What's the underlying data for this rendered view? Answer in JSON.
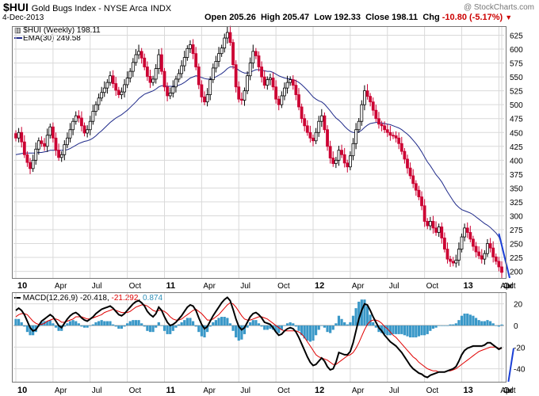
{
  "header": {
    "symbol": "$HUI",
    "name": "Gold Bugs Index - NYSE Arca",
    "exchange": "INDX",
    "date": "4-Dec-2013",
    "watermark": "@ StockCharts.com",
    "open_label": "Open",
    "open": "205.26",
    "high_label": "High",
    "high": "205.47",
    "low_label": "Low",
    "low": "192.33",
    "close_label": "Close",
    "close": "198.11",
    "chg_label": "Chg",
    "chg": "-10.80 (-5.17%)",
    "chg_icon": "down-triangle-icon"
  },
  "legend": {
    "price": "$HUI (Weekly) 198.11",
    "ema": "EMA(30) 249.58",
    "macd_label": "MACD(12,26,9)",
    "macd": "-20.418",
    "signal": "-21.292",
    "hist": "0.874"
  },
  "colors": {
    "up": "#000000",
    "down": "#cc0033",
    "ema": "#1f2a8a",
    "trendline": "#1a3fd6",
    "macd": "#000000",
    "signal": "#e00000",
    "histogram": "#3a98c8",
    "grid": "#d9d9d9"
  },
  "chart_data": [
    {
      "type": "candlestick",
      "title": "$HUI (Weekly)",
      "x_ticks": [
        "10",
        "Apr",
        "Jul",
        "Oct",
        "11",
        "Apr",
        "Jul",
        "Oct",
        "12",
        "Apr",
        "Jul",
        "Oct",
        "13",
        "Apr",
        "Jul",
        "Oct"
      ],
      "y_ticks": [
        200,
        225,
        250,
        275,
        300,
        325,
        350,
        375,
        400,
        425,
        450,
        475,
        500,
        525,
        550,
        575,
        600,
        625
      ],
      "ylim": [
        188,
        640
      ],
      "grid": true,
      "series": [
        {
          "name": "$HUI (Weekly)",
          "type": "candlestick",
          "close": [
            440,
            450,
            433,
            410,
            396,
            385,
            400,
            420,
            435,
            430,
            425,
            445,
            460,
            440,
            418,
            405,
            410,
            428,
            440,
            455,
            470,
            480,
            476,
            462,
            449,
            455,
            470,
            488,
            500,
            512,
            522,
            530,
            540,
            552,
            538,
            526,
            518,
            523,
            536,
            548,
            560,
            576,
            590,
            596,
            584,
            568,
            551,
            540,
            546,
            565,
            590,
            560,
            532,
            516,
            521,
            532,
            546,
            556,
            570,
            585,
            601,
            608,
            592,
            568,
            536,
            514,
            505,
            518,
            545,
            566,
            578,
            592,
            602,
            620,
            630,
            612,
            572,
            532,
            510,
            508,
            525,
            552,
            575,
            596,
            588,
            568,
            550,
            535,
            545,
            548,
            532,
            510,
            500,
            516,
            530,
            540,
            545,
            535,
            518,
            496,
            475,
            462,
            450,
            440,
            435,
            450,
            470,
            480,
            455,
            425,
            404,
            394,
            400,
            418,
            410,
            395,
            388,
            408,
            430,
            455,
            470,
            500,
            525,
            515,
            505,
            490,
            475,
            465,
            462,
            455,
            450,
            445,
            444,
            440,
            430,
            416,
            402,
            386,
            372,
            358,
            346,
            334,
            318,
            290,
            282,
            290,
            278,
            270,
            280,
            260,
            240,
            222,
            218,
            215,
            220,
            240,
            262,
            278,
            270,
            258,
            245,
            235,
            228,
            222,
            232,
            250,
            242,
            226,
            218,
            208,
            198.11
          ]
        },
        {
          "name": "EMA(30)",
          "type": "line",
          "values": [
            410,
            411,
            412,
            413,
            413,
            413,
            413,
            413,
            414,
            414,
            415,
            416,
            418,
            418,
            418,
            418,
            418,
            418,
            419,
            421,
            424,
            427,
            430,
            432,
            434,
            435,
            437,
            440,
            444,
            449,
            453,
            458,
            463,
            468,
            472,
            476,
            479,
            482,
            486,
            490,
            495,
            500,
            505,
            511,
            515,
            519,
            521,
            523,
            525,
            528,
            532,
            534,
            534,
            533,
            533,
            533,
            534,
            535,
            537,
            540,
            544,
            548,
            550,
            552,
            551,
            549,
            547,
            546,
            546,
            548,
            550,
            553,
            556,
            560,
            565,
            568,
            568,
            566,
            562,
            559,
            557,
            557,
            558,
            561,
            563,
            563,
            562,
            561,
            560,
            560,
            558,
            555,
            552,
            550,
            548,
            547,
            546,
            545,
            543,
            540,
            536,
            531,
            526,
            520,
            514,
            510,
            507,
            505,
            501,
            495,
            489,
            482,
            476,
            472,
            467,
            461,
            456,
            452,
            450,
            450,
            451,
            454,
            459,
            463,
            466,
            467,
            468,
            468,
            467,
            466,
            465,
            464,
            462,
            460,
            458,
            455,
            451,
            447,
            442,
            436,
            430,
            423,
            415,
            406,
            397,
            390,
            382,
            374,
            368,
            361,
            352,
            343,
            335,
            327,
            320,
            315,
            311,
            309,
            307,
            305,
            302,
            298,
            294,
            290,
            286,
            283,
            279,
            274,
            269,
            262,
            249.58
          ]
        },
        {
          "name": "Trend line",
          "type": "line",
          "points": [
            [
              "Apr 2013",
              268
            ],
            [
              "Dec 2013",
              188
            ]
          ]
        }
      ]
    },
    {
      "type": "line",
      "title": "MACD(12,26,9)",
      "x_ticks": [
        "10",
        "Apr",
        "Jul",
        "Oct",
        "11",
        "Apr",
        "Jul",
        "Oct",
        "12",
        "Apr",
        "Jul",
        "Oct",
        "13",
        "Apr",
        "Jul",
        "Oct"
      ],
      "y_ticks": [
        -40,
        -20,
        0,
        20
      ],
      "ylim": [
        -52,
        30
      ],
      "grid": true,
      "series": [
        {
          "name": "MACD",
          "values": [
            14,
            16,
            14,
            10,
            4,
            -2,
            -5,
            -4,
            0,
            4,
            6,
            8,
            10,
            8,
            4,
            0,
            -2,
            2,
            6,
            9,
            11,
            12,
            10,
            7,
            5,
            4,
            6,
            8,
            11,
            13,
            15,
            16,
            17,
            18,
            16,
            13,
            10,
            9,
            11,
            14,
            17,
            20,
            22,
            23,
            21,
            18,
            13,
            10,
            8,
            11,
            17,
            14,
            8,
            3,
            0,
            1,
            3,
            6,
            9,
            13,
            17,
            19,
            18,
            14,
            7,
            1,
            -3,
            -1,
            4,
            9,
            13,
            17,
            21,
            24,
            26,
            23,
            15,
            6,
            -1,
            -4,
            -2,
            3,
            8,
            11,
            12,
            10,
            7,
            3,
            2,
            1,
            -2,
            -6,
            -9,
            -8,
            -5,
            -3,
            -2,
            -3,
            -6,
            -11,
            -17,
            -23,
            -29,
            -34,
            -37,
            -36,
            -33,
            -30,
            -33,
            -38,
            -41,
            -40,
            -34,
            -25,
            -26,
            -27,
            -27,
            -24,
            -16,
            -5,
            6,
            14,
            20,
            19,
            14,
            8,
            3,
            -2,
            -5,
            -9,
            -12,
            -15,
            -17,
            -19,
            -22,
            -25,
            -29,
            -33,
            -37,
            -40,
            -42,
            -44,
            -45,
            -47,
            -48,
            -46,
            -45,
            -44,
            -43,
            -43,
            -43,
            -42,
            -41,
            -40,
            -38,
            -33,
            -27,
            -23,
            -21,
            -20,
            -19,
            -19,
            -19,
            -19,
            -18,
            -16,
            -16,
            -18,
            -20,
            -22,
            -20.418
          ]
        },
        {
          "name": "Signal",
          "values": [
            8,
            10,
            11,
            11,
            10,
            7,
            4,
            2,
            1,
            1,
            2,
            4,
            5,
            6,
            6,
            5,
            3,
            3,
            4,
            5,
            6,
            8,
            8,
            8,
            7,
            6,
            6,
            7,
            8,
            9,
            10,
            12,
            13,
            14,
            15,
            14,
            13,
            12,
            12,
            12,
            13,
            15,
            17,
            18,
            19,
            19,
            18,
            16,
            14,
            13,
            14,
            14,
            13,
            11,
            8,
            6,
            5,
            5,
            6,
            8,
            10,
            12,
            14,
            15,
            13,
            11,
            8,
            5,
            5,
            6,
            8,
            10,
            13,
            16,
            19,
            21,
            20,
            17,
            13,
            9,
            6,
            5,
            5,
            6,
            7,
            8,
            8,
            7,
            6,
            4,
            2,
            0,
            -2,
            -4,
            -5,
            -5,
            -5,
            -5,
            -5,
            -6,
            -8,
            -11,
            -15,
            -19,
            -23,
            -27,
            -29,
            -30,
            -31,
            -32,
            -34,
            -36,
            -36,
            -34,
            -32,
            -30,
            -28,
            -27,
            -25,
            -21,
            -16,
            -10,
            -4,
            1,
            4,
            5,
            5,
            4,
            2,
            -1,
            -3,
            -6,
            -9,
            -11,
            -14,
            -17,
            -20,
            -23,
            -26,
            -29,
            -31,
            -34,
            -36,
            -38,
            -40,
            -41,
            -42,
            -42,
            -43,
            -43,
            -43,
            -42,
            -42,
            -41,
            -40,
            -38,
            -36,
            -34,
            -32,
            -30,
            -28,
            -26,
            -24,
            -23,
            -22,
            -21,
            -20,
            -20,
            -20,
            -21,
            -21.292
          ]
        },
        {
          "name": "Histogram",
          "type": "bar",
          "values": [
            6,
            6,
            3,
            -1,
            -6,
            -9,
            -9,
            -6,
            -1,
            3,
            4,
            4,
            5,
            2,
            -2,
            -5,
            -5,
            -1,
            2,
            4,
            5,
            4,
            2,
            -1,
            -2,
            -2,
            0,
            1,
            3,
            4,
            5,
            4,
            4,
            4,
            1,
            -1,
            -3,
            -3,
            -1,
            2,
            4,
            5,
            5,
            5,
            2,
            -1,
            -5,
            -6,
            -6,
            -2,
            3,
            0,
            -5,
            -8,
            -8,
            -5,
            -2,
            1,
            3,
            5,
            7,
            7,
            4,
            -1,
            -6,
            -10,
            -11,
            -6,
            -1,
            3,
            5,
            7,
            8,
            8,
            7,
            2,
            -5,
            -11,
            -14,
            -13,
            -8,
            -2,
            3,
            5,
            5,
            2,
            -1,
            -4,
            -4,
            -3,
            -4,
            -6,
            -7,
            -4,
            0,
            2,
            3,
            2,
            -1,
            -5,
            -9,
            -12,
            -14,
            -15,
            -14,
            -9,
            -4,
            0,
            -2,
            -6,
            -7,
            -4,
            2,
            9,
            6,
            3,
            1,
            3,
            9,
            16,
            22,
            24,
            24,
            18,
            10,
            3,
            -2,
            -6,
            -7,
            -8,
            -9,
            -9,
            -8,
            -8,
            -8,
            -8,
            -9,
            -10,
            -11,
            -11,
            -11,
            -10,
            -9,
            -9,
            -8,
            -5,
            -3,
            -2,
            0,
            0,
            0,
            0,
            1,
            1,
            2,
            5,
            9,
            11,
            11,
            10,
            9,
            7,
            5,
            4,
            4,
            5,
            4,
            2,
            0,
            -1,
            0.874
          ]
        },
        {
          "name": "Trend line",
          "type": "line",
          "points": [
            [
              "Apr 2013",
              -52
            ],
            [
              "Dec 2013",
              -21
            ]
          ]
        }
      ]
    }
  ]
}
